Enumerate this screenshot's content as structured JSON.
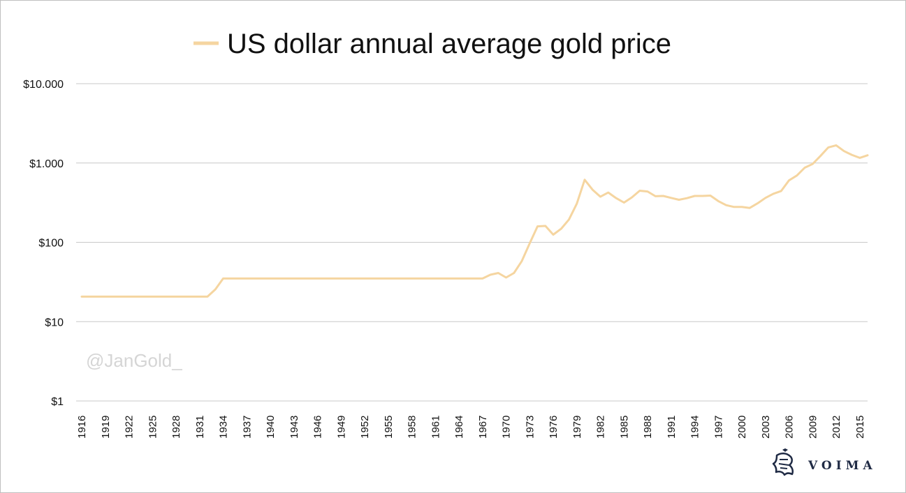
{
  "watermark": "@JanGold_",
  "brand": {
    "name": "VOIMA",
    "logo_icon": "heraldic-lion-icon"
  },
  "chart_data": {
    "type": "line",
    "title": "",
    "legend": {
      "placement": "top",
      "entries": [
        "US dollar annual average gold price"
      ]
    },
    "xlabel": "",
    "ylabel": "",
    "y_scale": "log",
    "ylim": [
      1,
      10000
    ],
    "grid": true,
    "y_ticks": [
      {
        "value": 1,
        "label": "$1"
      },
      {
        "value": 10,
        "label": "$10"
      },
      {
        "value": 100,
        "label": "$100"
      },
      {
        "value": 1000,
        "label": "$1.000"
      },
      {
        "value": 10000,
        "label": "$10.000"
      }
    ],
    "x_tick_labels": [
      "1916",
      "1919",
      "1922",
      "1925",
      "1928",
      "1931",
      "1934",
      "1937",
      "1940",
      "1943",
      "1946",
      "1949",
      "1952",
      "1955",
      "1958",
      "1961",
      "1964",
      "1967",
      "1970",
      "1973",
      "1976",
      "1979",
      "1982",
      "1985",
      "1988",
      "1991",
      "1994",
      "1997",
      "2000",
      "2003",
      "2006",
      "2009",
      "2012",
      "2015"
    ],
    "series": [
      {
        "name": "US dollar annual average gold price",
        "color": "#f5d5a0",
        "x": [
          1916,
          1917,
          1918,
          1919,
          1920,
          1921,
          1922,
          1923,
          1924,
          1925,
          1926,
          1927,
          1928,
          1929,
          1930,
          1931,
          1932,
          1933,
          1934,
          1935,
          1936,
          1937,
          1938,
          1939,
          1940,
          1941,
          1942,
          1943,
          1944,
          1945,
          1946,
          1947,
          1948,
          1949,
          1950,
          1951,
          1952,
          1953,
          1954,
          1955,
          1956,
          1957,
          1958,
          1959,
          1960,
          1961,
          1962,
          1963,
          1964,
          1965,
          1966,
          1967,
          1968,
          1969,
          1970,
          1971,
          1972,
          1973,
          1974,
          1975,
          1976,
          1977,
          1978,
          1979,
          1980,
          1981,
          1982,
          1983,
          1984,
          1985,
          1986,
          1987,
          1988,
          1989,
          1990,
          1991,
          1992,
          1993,
          1994,
          1995,
          1996,
          1997,
          1998,
          1999,
          2000,
          2001,
          2002,
          2003,
          2004,
          2005,
          2006,
          2007,
          2008,
          2009,
          2010,
          2011,
          2012,
          2013,
          2014,
          2015,
          2016
        ],
        "y": [
          20.67,
          20.67,
          20.67,
          20.67,
          20.67,
          20.67,
          20.67,
          20.67,
          20.67,
          20.67,
          20.67,
          20.67,
          20.67,
          20.67,
          20.67,
          20.67,
          20.67,
          25.5,
          35,
          35,
          35,
          35,
          35,
          35,
          35,
          35,
          35,
          35,
          35,
          35,
          35,
          35,
          35,
          35,
          35,
          35,
          35,
          35,
          35,
          35,
          35,
          35,
          35,
          35,
          35,
          35,
          35,
          35,
          35,
          35,
          35,
          35,
          39,
          41,
          36,
          41,
          58,
          97,
          159,
          161,
          125,
          148,
          194,
          308,
          615,
          460,
          376,
          424,
          361,
          317,
          368,
          447,
          437,
          381,
          384,
          363,
          344,
          360,
          384,
          384,
          388,
          331,
          294,
          279,
          279,
          271,
          310,
          363,
          409,
          444,
          603,
          695,
          872,
          972,
          1225,
          1572,
          1669,
          1411,
          1266,
          1160,
          1251
        ]
      }
    ]
  }
}
